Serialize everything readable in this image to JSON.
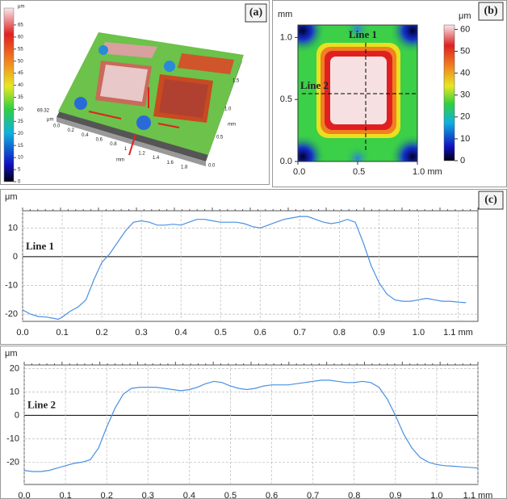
{
  "panels": {
    "a": {
      "label": "(a)",
      "colorbar_unit": "μm",
      "colorbar_ticks": [
        0,
        5,
        10,
        15,
        20,
        25,
        30,
        35,
        40,
        45,
        50,
        55,
        60,
        65
      ],
      "colorbar_lim": [
        0,
        72
      ],
      "height_max": "69.32",
      "height_unit": "μm",
      "x_labels": [
        "0.0",
        "0.2",
        "0.4",
        "0.6",
        "0.8",
        "1",
        "1.2",
        "1.4",
        "1.6",
        "1.8"
      ],
      "x_unit": "mm",
      "y_labels": [
        "0.0",
        "0.5",
        "1.0",
        "1.5"
      ],
      "y_unit": "mm"
    },
    "b": {
      "label": "(b)",
      "y_unit": "mm",
      "colorbar_unit": "μm",
      "colorbar_ticks": [
        0,
        10,
        20,
        30,
        40,
        50,
        60
      ],
      "colorbar_lim": [
        0,
        62
      ],
      "xlim": [
        0,
        1.0
      ],
      "ylim": [
        0,
        1.1
      ],
      "xticks": [
        {
          "value": 0,
          "label": "0.0"
        },
        0.5,
        {
          "value": 1,
          "label": "1.0 mm"
        }
      ],
      "yticks": [
        {
          "value": 0,
          "label": "0.0"
        },
        0.5,
        {
          "value": 1,
          "label": "1.0"
        }
      ],
      "line1_label": "Line 1",
      "line2_label": "Line 2"
    },
    "c": {
      "label": "(c)"
    }
  },
  "chart_data": [
    {
      "type": "line",
      "title": "Line 1",
      "y_unit": "μm",
      "grid": true,
      "x": [
        0,
        0.02,
        0.04,
        0.06,
        0.08,
        0.09,
        0.1,
        0.12,
        0.14,
        0.16,
        0.18,
        0.2,
        0.22,
        0.24,
        0.26,
        0.28,
        0.3,
        0.32,
        0.34,
        0.36,
        0.38,
        0.4,
        0.42,
        0.44,
        0.46,
        0.48,
        0.5,
        0.52,
        0.54,
        0.56,
        0.58,
        0.6,
        0.62,
        0.64,
        0.66,
        0.68,
        0.7,
        0.72,
        0.74,
        0.76,
        0.78,
        0.8,
        0.82,
        0.84,
        0.86,
        0.88,
        0.9,
        0.92,
        0.94,
        0.96,
        0.98,
        1.0,
        1.02,
        1.04,
        1.06,
        1.08,
        1.1,
        1.12
      ],
      "series": [
        {
          "color": "#4a90e2",
          "values": [
            -18.5,
            -20,
            -20.8,
            -21,
            -21.5,
            -21.8,
            -21,
            -19,
            -17.5,
            -15,
            -8,
            -2,
            1,
            5,
            9,
            12,
            12.5,
            12,
            11,
            11,
            11.3,
            11,
            12,
            13,
            13,
            12.5,
            12,
            12,
            12,
            11.5,
            10.5,
            10,
            11,
            12,
            13,
            13.5,
            14,
            14,
            13,
            12,
            11.5,
            12,
            13,
            12,
            5,
            -3,
            -9,
            -13,
            -15,
            -15.5,
            -15.5,
            -15,
            -14.5,
            -15,
            -15.5,
            -15.5,
            -15.8,
            -16
          ]
        }
      ],
      "xlim": [
        0,
        1.15
      ],
      "ylim": [
        -22.5,
        16
      ],
      "xticks": [
        {
          "value": 0,
          "label": "0.0"
        },
        0.1,
        0.2,
        0.3,
        0.4,
        0.5,
        0.6,
        0.7,
        0.8,
        0.9,
        {
          "value": 1,
          "label": "1.0"
        },
        {
          "value": 1.1,
          "label": "1.1 mm"
        }
      ],
      "yticks": [
        -20,
        -10,
        0,
        10
      ]
    },
    {
      "type": "line",
      "title": "Line 2",
      "y_unit": "μm",
      "grid": true,
      "x": [
        0,
        0.02,
        0.04,
        0.06,
        0.08,
        0.1,
        0.12,
        0.14,
        0.16,
        0.18,
        0.2,
        0.22,
        0.24,
        0.26,
        0.28,
        0.3,
        0.32,
        0.34,
        0.36,
        0.38,
        0.4,
        0.42,
        0.44,
        0.46,
        0.48,
        0.5,
        0.52,
        0.54,
        0.56,
        0.58,
        0.6,
        0.62,
        0.64,
        0.66,
        0.68,
        0.7,
        0.72,
        0.74,
        0.76,
        0.78,
        0.8,
        0.82,
        0.84,
        0.86,
        0.88,
        0.9,
        0.92,
        0.94,
        0.96,
        0.98,
        1.0,
        1.02,
        1.04,
        1.06,
        1.08,
        1.1
      ],
      "series": [
        {
          "color": "#4a90e2",
          "values": [
            -23.5,
            -24,
            -24,
            -23.5,
            -22.5,
            -21.5,
            -20.5,
            -20,
            -19,
            -14,
            -5,
            3,
            9,
            11.5,
            12,
            12,
            12,
            11.5,
            11,
            10.5,
            11,
            12,
            13.5,
            14.5,
            14,
            12.5,
            11.5,
            11,
            11.5,
            12.5,
            13,
            13,
            13,
            13.5,
            14,
            14.5,
            15,
            15,
            14.5,
            14,
            14,
            14.5,
            14,
            12,
            7,
            0,
            -8,
            -14,
            -18,
            -20,
            -21,
            -21.5,
            -21.7,
            -22,
            -22.2,
            -22.5
          ]
        }
      ],
      "xlim": [
        0,
        1.1
      ],
      "ylim": [
        -29.5,
        21.5
      ],
      "xticks": [
        {
          "value": 0,
          "label": "0.0"
        },
        0.1,
        0.2,
        0.3,
        0.4,
        0.5,
        0.6,
        0.7,
        0.8,
        0.9,
        {
          "value": 1,
          "label": "1.0"
        },
        {
          "value": 1.1,
          "label": "1.1 mm"
        }
      ],
      "yticks": [
        -20,
        -10,
        0,
        10,
        20
      ]
    }
  ]
}
